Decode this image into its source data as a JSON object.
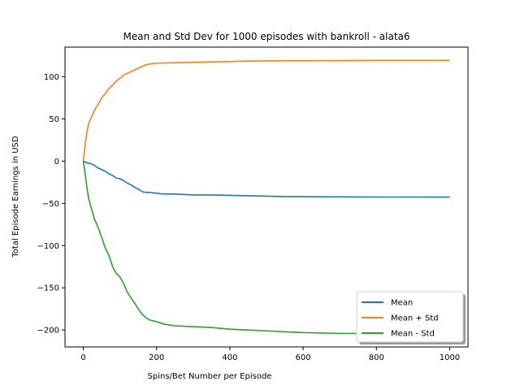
{
  "chart_data": {
    "type": "line",
    "title": "Mean and Std Dev for 1000 episodes with bankroll - alata6",
    "xlabel": "Spins/Bet Number per Episode",
    "ylabel": "Total Episode Earnings in USD",
    "xlim": [
      -50,
      1050
    ],
    "ylim": [
      -220,
      135
    ],
    "xticks": [
      0,
      200,
      400,
      600,
      800,
      1000
    ],
    "yticks": [
      -200,
      -150,
      -100,
      -50,
      0,
      50,
      100
    ],
    "grid": false,
    "legend": {
      "placement": "lower-right",
      "entries": [
        "Mean",
        "Mean + Std",
        "Mean - Std"
      ]
    },
    "series": [
      {
        "name": "Mean",
        "color": "#1f77b4",
        "x": [
          0,
          10,
          20,
          30,
          40,
          50,
          60,
          70,
          80,
          90,
          100,
          110,
          120,
          130,
          140,
          150,
          160,
          170,
          180,
          200,
          220,
          250,
          300,
          350,
          400,
          450,
          500,
          550,
          600,
          650,
          700,
          750,
          800,
          850,
          900,
          950,
          1000
        ],
        "values": [
          0,
          -2,
          -3,
          -5,
          -8,
          -10,
          -12,
          -15,
          -17,
          -20,
          -21,
          -23,
          -26,
          -28,
          -31,
          -33,
          -36,
          -37,
          -37,
          -38,
          -39,
          -39,
          -40,
          -40,
          -40.5,
          -41,
          -41.5,
          -42,
          -42,
          -42.2,
          -42.3,
          -42.4,
          -42.5,
          -42.5,
          -42.5,
          -42.6,
          -42.6
        ]
      },
      {
        "name": "Mean + Std",
        "color": "#ff7f0e",
        "x": [
          0,
          5,
          10,
          15,
          20,
          30,
          40,
          50,
          60,
          70,
          80,
          90,
          100,
          110,
          120,
          130,
          140,
          150,
          160,
          170,
          180,
          200,
          250,
          300,
          350,
          400,
          450,
          500,
          550,
          600,
          650,
          700,
          750,
          800,
          850,
          900,
          950,
          1000
        ],
        "values": [
          0,
          20,
          35,
          45,
          50,
          60,
          67,
          75,
          80,
          86,
          90,
          95,
          98,
          102,
          104,
          106,
          108,
          110,
          112,
          114,
          115,
          116,
          116.5,
          117,
          117.5,
          118,
          118.5,
          118.7,
          118.8,
          118.9,
          119,
          119.1,
          119.2,
          119.3,
          119.3,
          119.3,
          119.3,
          119.3
        ]
      },
      {
        "name": "Mean - Std",
        "color": "#2ca02c",
        "x": [
          0,
          5,
          10,
          15,
          20,
          30,
          40,
          50,
          60,
          70,
          80,
          90,
          100,
          110,
          120,
          130,
          140,
          150,
          160,
          170,
          180,
          200,
          220,
          250,
          300,
          350,
          400,
          450,
          500,
          550,
          600,
          650,
          700,
          750,
          800,
          850,
          900,
          950,
          1000
        ],
        "values": [
          0,
          -15,
          -32,
          -45,
          -53,
          -68,
          -78,
          -90,
          -103,
          -112,
          -125,
          -133,
          -137,
          -145,
          -155,
          -162,
          -168,
          -175,
          -181,
          -185,
          -188,
          -190,
          -193,
          -195,
          -196,
          -197,
          -199,
          -200,
          -201,
          -202,
          -203,
          -203.5,
          -204,
          -204,
          -204.3,
          -204.5,
          -204.6,
          -204.7,
          -204.8
        ]
      }
    ]
  }
}
